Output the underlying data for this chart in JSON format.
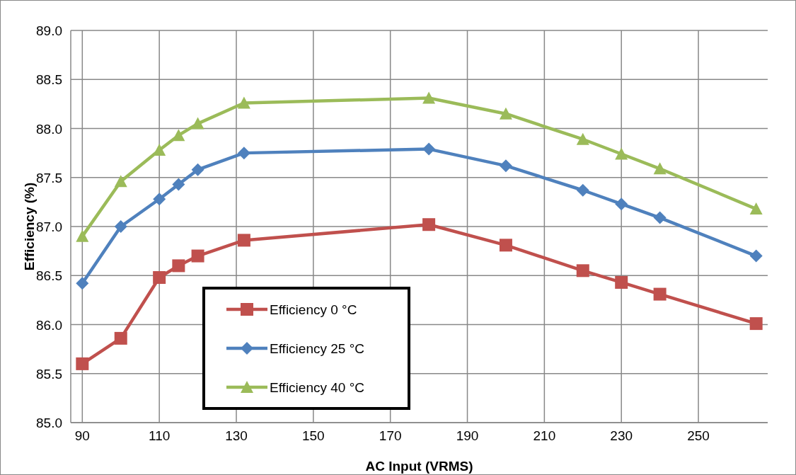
{
  "chart_data": {
    "type": "line",
    "xlabel": "AC Input (VRMS)",
    "ylabel": "Efficiency (%)",
    "x": [
      90,
      100,
      110,
      115,
      120,
      132,
      180,
      200,
      220,
      230,
      240,
      265
    ],
    "series": [
      {
        "name": "Efficiency 0 °C",
        "color": "#c0504d",
        "marker": "square",
        "values": [
          85.6,
          85.86,
          86.48,
          86.6,
          86.7,
          86.86,
          87.02,
          86.81,
          86.55,
          86.43,
          86.31,
          86.01
        ]
      },
      {
        "name": "Efficiency 25 °C",
        "color": "#4f81bd",
        "marker": "diamond",
        "values": [
          86.42,
          87.0,
          87.28,
          87.43,
          87.58,
          87.75,
          87.79,
          87.62,
          87.37,
          87.23,
          87.09,
          86.7
        ]
      },
      {
        "name": "Efficiency 40 °C",
        "color": "#9bbb59",
        "marker": "triangle",
        "values": [
          86.9,
          87.46,
          87.78,
          87.93,
          88.05,
          88.26,
          88.31,
          88.15,
          87.89,
          87.74,
          87.59,
          87.18
        ]
      }
    ],
    "xlim": [
      87,
      268
    ],
    "xticks": [
      90,
      110,
      130,
      150,
      170,
      190,
      210,
      230,
      250
    ],
    "ylim": [
      85,
      89
    ],
    "yticks": [
      {
        "value": 85,
        "label": "85.0"
      },
      {
        "value": 85.5,
        "label": "85.5"
      },
      {
        "value": 86,
        "label": "86.0"
      },
      {
        "value": 86.5,
        "label": "86.5"
      },
      {
        "value": 87,
        "label": "87.0"
      },
      {
        "value": 87.5,
        "label": "87.5"
      },
      {
        "value": 88,
        "label": "88.0"
      },
      {
        "value": 88.5,
        "label": "88.5"
      },
      {
        "value": 89,
        "label": "89.0"
      }
    ],
    "grid": true,
    "legend": "bottom left",
    "line_style": "solid"
  }
}
